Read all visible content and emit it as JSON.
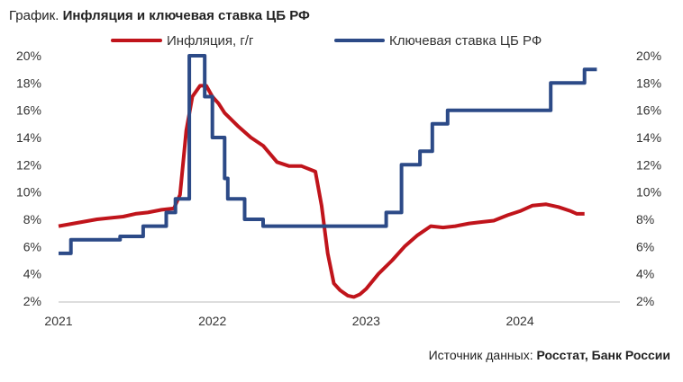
{
  "header": {
    "title_prefix": "График.",
    "title_main": "Инфляция и ключевая ставка ЦБ РФ"
  },
  "footer": {
    "source_prefix": "Источник данных:",
    "source_main": "Росстат, Банк России"
  },
  "chart_data": {
    "type": "line",
    "title": "Инфляция и ключевая ставка ЦБ РФ",
    "ylim": [
      2,
      20
    ],
    "y_ticks": [
      "2%",
      "4%",
      "6%",
      "8%",
      "10%",
      "12%",
      "14%",
      "16%",
      "18%",
      "20%"
    ],
    "y_ticks_right": [
      "2%",
      "4%",
      "6%",
      "8%",
      "10%",
      "12%",
      "14%",
      "16%",
      "18%",
      "20%"
    ],
    "x_ticks": [
      "2021",
      "2022",
      "2023",
      "2024"
    ],
    "xlim": [
      2021.0,
      2024.65
    ],
    "grid": false,
    "legend_position": "top",
    "series": [
      {
        "name": "Инфляция, г/г",
        "color": "#c0141b",
        "x": [
          2021.0,
          2021.25,
          2021.42,
          2021.5,
          2021.58,
          2021.67,
          2021.75,
          2021.79,
          2021.83,
          2021.87,
          2021.92,
          2021.96,
          2022.0,
          2022.04,
          2022.08,
          2022.17,
          2022.25,
          2022.33,
          2022.42,
          2022.5,
          2022.58,
          2022.67,
          2022.71,
          2022.75,
          2022.79,
          2022.83,
          2022.88,
          2022.92,
          2022.96,
          2023.0,
          2023.08,
          2023.17,
          2023.25,
          2023.33,
          2023.42,
          2023.5,
          2023.58,
          2023.67,
          2023.75,
          2023.83,
          2023.92,
          2024.0,
          2024.08,
          2024.17,
          2024.25,
          2024.33,
          2024.37,
          2024.42
        ],
        "values": [
          7.5,
          8.0,
          8.2,
          8.4,
          8.5,
          8.7,
          8.8,
          9.8,
          14.5,
          17.0,
          17.8,
          17.8,
          17.0,
          16.5,
          15.8,
          14.8,
          14.0,
          13.4,
          12.2,
          11.9,
          11.9,
          11.5,
          9.0,
          5.5,
          3.3,
          2.8,
          2.4,
          2.3,
          2.5,
          2.9,
          4.0,
          5.0,
          6.0,
          6.8,
          7.5,
          7.4,
          7.5,
          7.7,
          7.8,
          7.9,
          8.3,
          8.6,
          9.0,
          9.1,
          8.9,
          8.6,
          8.4,
          8.4
        ]
      },
      {
        "name": "Ключевая ставка ЦБ РФ",
        "color": "#2c4a87",
        "x": [
          2021.0,
          2021.08,
          2021.3,
          2021.4,
          2021.55,
          2021.7,
          2021.76,
          2021.85,
          2021.95,
          2022.0,
          2022.04,
          2022.08,
          2022.1,
          2022.17,
          2022.21,
          2022.29,
          2022.33,
          2022.75,
          2022.92,
          2023.0,
          2023.13,
          2023.23,
          2023.27,
          2023.35,
          2023.43,
          2023.53,
          2023.8,
          2024.05,
          2024.2,
          2024.3,
          2024.42,
          2024.5
        ],
        "values": [
          5.5,
          6.5,
          6.5,
          6.75,
          7.5,
          8.5,
          9.5,
          20.0,
          17.0,
          14.0,
          14.0,
          11.0,
          9.5,
          9.5,
          8.0,
          8.0,
          7.5,
          7.5,
          7.5,
          7.5,
          8.5,
          12.0,
          12.0,
          13.0,
          15.0,
          16.0,
          16.0,
          16.0,
          18.0,
          18.0,
          19.0,
          19.0
        ],
        "step": true
      }
    ]
  }
}
